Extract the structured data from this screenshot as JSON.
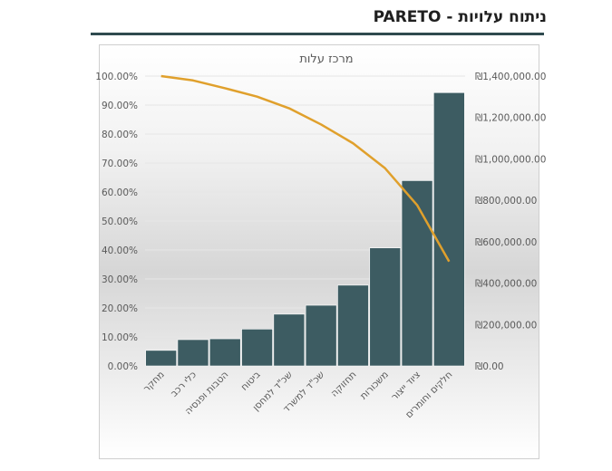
{
  "page": {
    "title": "ניתוח עלויות - PARETO"
  },
  "colors": {
    "bar": "#3d5c62",
    "line": "#e0a02c",
    "title_rule": "#2f4a4f"
  },
  "chart_data": {
    "type": "bar",
    "title": "מרכז עלות",
    "categories": [
      "מחקר",
      "כלי רכב",
      "הטבות ופנסיה",
      "ביטוח",
      "שכ\"ד למחסן",
      "שכ\"ד למשרד",
      "תחזוקה",
      "משכורות",
      "ציוד ייצור",
      "חלקים וחומרים"
    ],
    "series": [
      {
        "type": "bar",
        "axis": "right",
        "values": [
          75000,
          127000,
          131000,
          178000,
          250000,
          293000,
          390000,
          570000,
          895000,
          1320000
        ]
      },
      {
        "type": "line",
        "axis": "left",
        "values": [
          100.0,
          98.5,
          95.8,
          92.9,
          88.9,
          83.3,
          76.8,
          68.2,
          55.5,
          36.0
        ]
      }
    ],
    "y_left": {
      "lim": [
        0,
        100
      ],
      "tick_labels": [
        "0.00%",
        "10.00%",
        "20.00%",
        "30.00%",
        "40.00%",
        "50.00%",
        "60.00%",
        "70.00%",
        "80.00%",
        "90.00%",
        "100.00%"
      ]
    },
    "y_right": {
      "lim": [
        0,
        1400000
      ],
      "tick_labels": [
        "₪0.00",
        "₪200,000.00",
        "₪400,000.00",
        "₪600,000.00",
        "₪800,000.00",
        "₪1,000,000.00",
        "₪1,200,000.00",
        "₪1,400,000.00"
      ]
    },
    "grid": "horizontal",
    "legend": "none"
  }
}
